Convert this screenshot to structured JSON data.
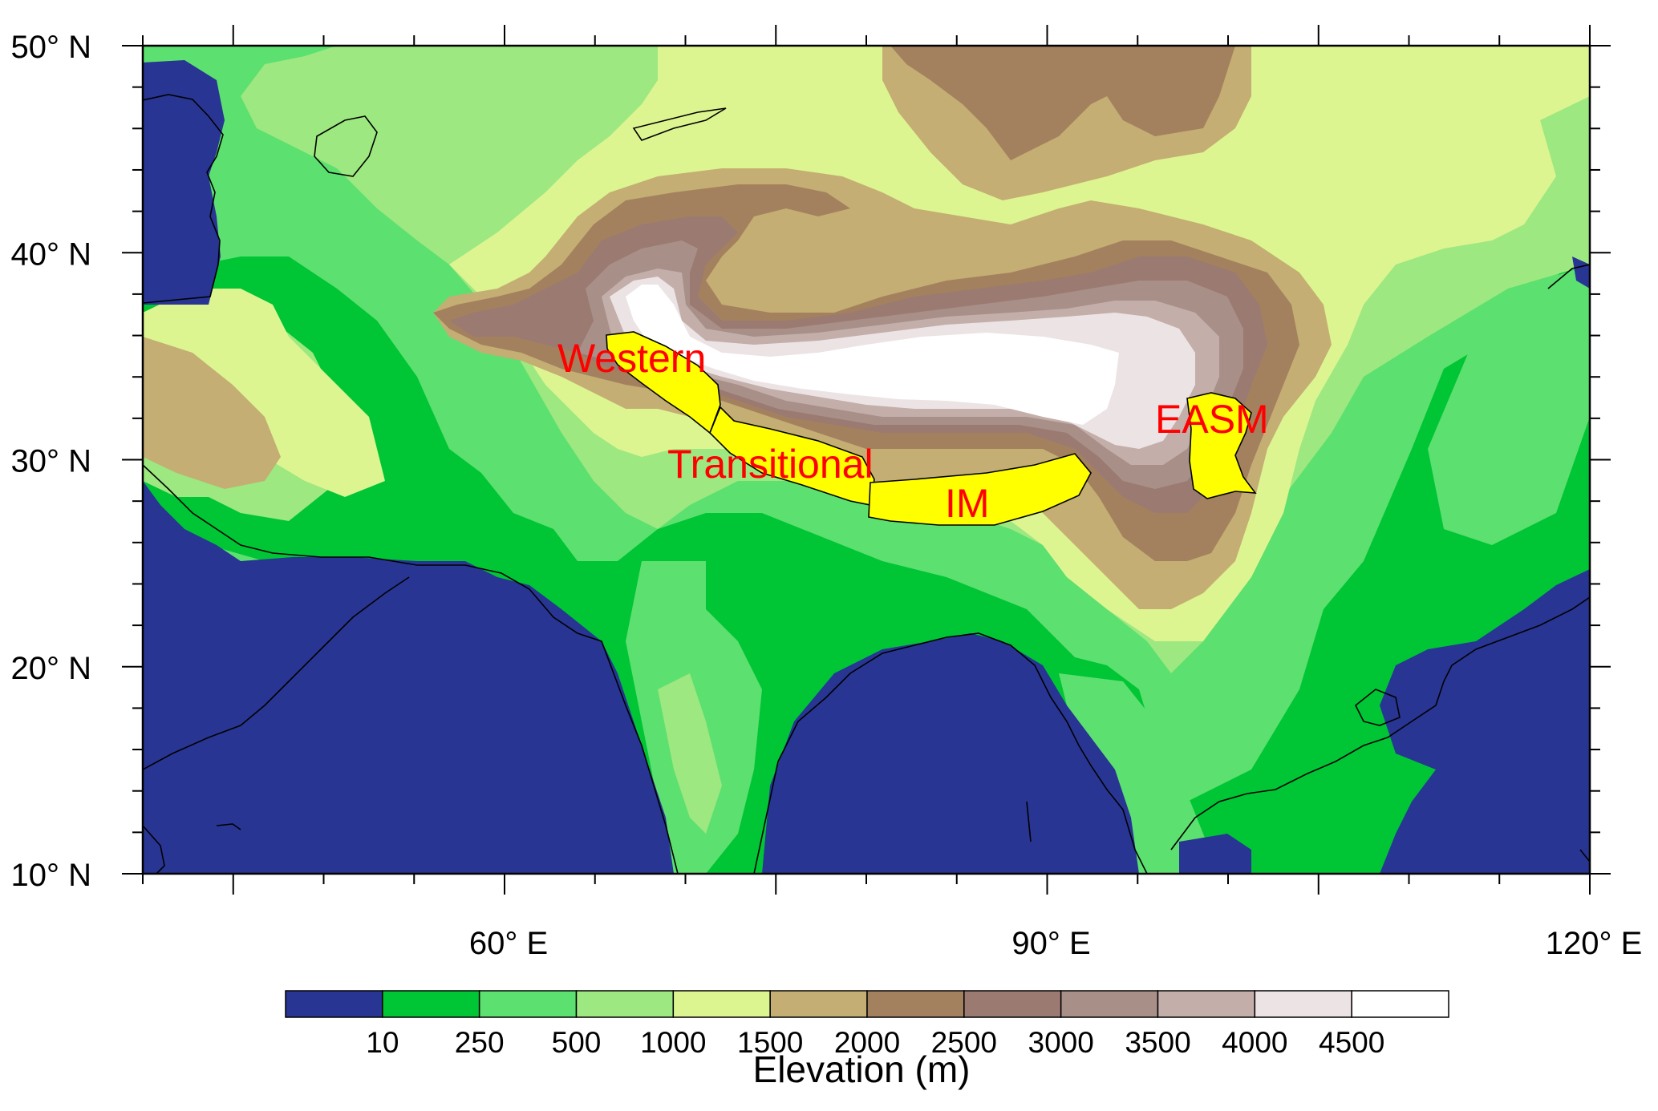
{
  "map": {
    "lon_range": [
      40,
      120
    ],
    "lat_range": [
      10,
      50
    ],
    "lat_ticks": [
      {
        "value": 50,
        "label": "50° N"
      },
      {
        "value": 40,
        "label": "40° N"
      },
      {
        "value": 30,
        "label": "30° N"
      },
      {
        "value": 20,
        "label": "20° N"
      },
      {
        "value": 10,
        "label": "10° N"
      }
    ],
    "lon_ticks": [
      {
        "value": 60,
        "label": "60° E"
      },
      {
        "value": 90,
        "label": "90° E"
      },
      {
        "value": 120,
        "label": "120° E"
      }
    ],
    "regions": [
      {
        "name": "Western",
        "color": "#ff0000"
      },
      {
        "name": "Transitional",
        "color": "#ff0000"
      },
      {
        "name": "IM",
        "color": "#ff0000"
      },
      {
        "name": "EASM",
        "color": "#ff0000"
      }
    ],
    "region_fill": "#ffff00",
    "ocean_color": "#283593"
  },
  "colorbar": {
    "title": "Elevation (m)",
    "levels": [
      "10",
      "250",
      "500",
      "1000",
      "1500",
      "2000",
      "2500",
      "3000",
      "3500",
      "4000",
      "4500"
    ],
    "colors": [
      "#283593",
      "#00c535",
      "#5ce06f",
      "#9de880",
      "#ddf591",
      "#c4ae73",
      "#a3815e",
      "#9b7a72",
      "#a89089",
      "#c3aeaa",
      "#ece4e4",
      "#ffffff"
    ]
  }
}
